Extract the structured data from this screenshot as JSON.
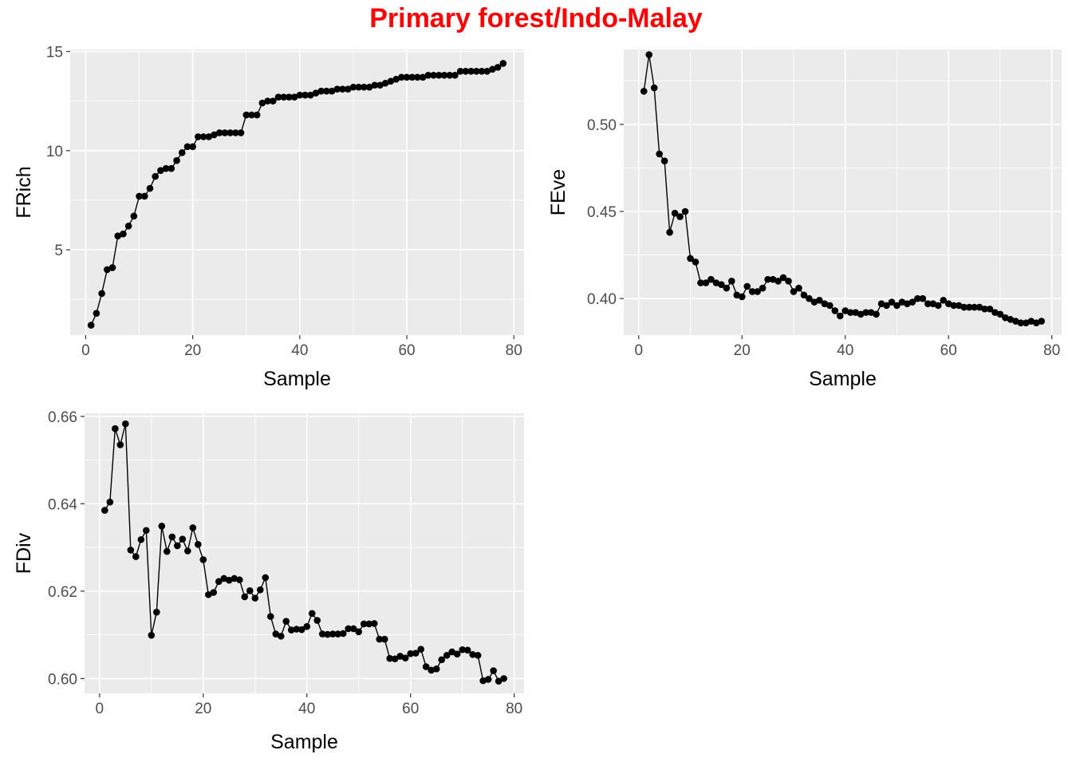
{
  "title": "Primary forest/Indo-Malay",
  "colors": {
    "title": "#ff0000",
    "panel_bg": "#ebebeb",
    "grid": "#ffffff",
    "line": "#000000",
    "tick_text": "#4d4d4d",
    "axis_title": "#000000"
  },
  "chart_data": [
    {
      "type": "line",
      "ylabel": "FRich",
      "xlabel": "Sample",
      "xlim": [
        -2.9,
        81.9
      ],
      "ylim": [
        0.7,
        15.1
      ],
      "x_ticks": [
        0,
        20,
        40,
        60,
        80
      ],
      "x_tick_labels": [
        "0",
        "20",
        "40",
        "60",
        "80"
      ],
      "y_ticks": [
        5,
        10,
        15
      ],
      "y_tick_labels": [
        "5",
        "10",
        "15"
      ],
      "grid": true,
      "series": [
        {
          "x": [
            1,
            2,
            3,
            4,
            5,
            6,
            7,
            8,
            9,
            10,
            11,
            12,
            13,
            14,
            15,
            16,
            17,
            18,
            19,
            20,
            21,
            22,
            23,
            24,
            25,
            26,
            27,
            28,
            29,
            30,
            31,
            32,
            33,
            34,
            35,
            36,
            37,
            38,
            39,
            40,
            41,
            42,
            43,
            44,
            45,
            46,
            47,
            48,
            49,
            50,
            51,
            52,
            53,
            54,
            55,
            56,
            57,
            58,
            59,
            60,
            61,
            62,
            63,
            64,
            65,
            66,
            67,
            68,
            69,
            70,
            71,
            72,
            73,
            74,
            75,
            76,
            77,
            78
          ],
          "values": [
            1.2,
            1.8,
            2.8,
            4.0,
            4.1,
            5.7,
            5.8,
            6.2,
            6.7,
            7.7,
            7.7,
            8.1,
            8.7,
            9.0,
            9.1,
            9.1,
            9.5,
            9.9,
            10.2,
            10.2,
            10.7,
            10.7,
            10.7,
            10.8,
            10.9,
            10.9,
            10.9,
            10.9,
            10.9,
            11.8,
            11.8,
            11.8,
            12.4,
            12.5,
            12.5,
            12.7,
            12.7,
            12.7,
            12.7,
            12.8,
            12.8,
            12.8,
            12.9,
            13.0,
            13.0,
            13.0,
            13.1,
            13.1,
            13.1,
            13.2,
            13.2,
            13.2,
            13.2,
            13.3,
            13.3,
            13.4,
            13.5,
            13.6,
            13.7,
            13.7,
            13.7,
            13.7,
            13.7,
            13.8,
            13.8,
            13.8,
            13.8,
            13.8,
            13.8,
            14.0,
            14.0,
            14.0,
            14.0,
            14.0,
            14.0,
            14.1,
            14.2,
            14.4
          ]
        }
      ]
    },
    {
      "type": "line",
      "ylabel": "FEve",
      "xlabel": "Sample",
      "xlim": [
        -2.9,
        81.9
      ],
      "ylim": [
        0.379,
        0.543
      ],
      "x_ticks": [
        0,
        20,
        40,
        60,
        80
      ],
      "x_tick_labels": [
        "0",
        "20",
        "40",
        "60",
        "80"
      ],
      "y_ticks": [
        0.4,
        0.45,
        0.5
      ],
      "y_tick_labels": [
        "0.40",
        "0.45",
        "0.50"
      ],
      "grid": true,
      "series": [
        {
          "x": [
            1,
            2,
            3,
            4,
            5,
            6,
            7,
            8,
            9,
            10,
            11,
            12,
            13,
            14,
            15,
            16,
            17,
            18,
            19,
            20,
            21,
            22,
            23,
            24,
            25,
            26,
            27,
            28,
            29,
            30,
            31,
            32,
            33,
            34,
            35,
            36,
            37,
            38,
            39,
            40,
            41,
            42,
            43,
            44,
            45,
            46,
            47,
            48,
            49,
            50,
            51,
            52,
            53,
            54,
            55,
            56,
            57,
            58,
            59,
            60,
            61,
            62,
            63,
            64,
            65,
            66,
            67,
            68,
            69,
            70,
            71,
            72,
            73,
            74,
            75,
            76,
            77,
            78
          ],
          "values": [
            0.519,
            0.54,
            0.521,
            0.483,
            0.479,
            0.438,
            0.449,
            0.447,
            0.45,
            0.423,
            0.421,
            0.409,
            0.409,
            0.411,
            0.409,
            0.408,
            0.406,
            0.41,
            0.402,
            0.401,
            0.407,
            0.404,
            0.404,
            0.406,
            0.411,
            0.411,
            0.41,
            0.412,
            0.41,
            0.404,
            0.406,
            0.402,
            0.4,
            0.398,
            0.399,
            0.397,
            0.396,
            0.393,
            0.39,
            0.393,
            0.392,
            0.392,
            0.391,
            0.392,
            0.392,
            0.391,
            0.397,
            0.396,
            0.398,
            0.396,
            0.398,
            0.397,
            0.398,
            0.4,
            0.4,
            0.397,
            0.397,
            0.396,
            0.399,
            0.397,
            0.396,
            0.396,
            0.395,
            0.395,
            0.395,
            0.395,
            0.394,
            0.394,
            0.392,
            0.391,
            0.389,
            0.388,
            0.387,
            0.386,
            0.386,
            0.387,
            0.386,
            0.387
          ]
        }
      ]
    },
    {
      "type": "line",
      "ylabel": "FDiv",
      "xlabel": "Sample",
      "xlim": [
        -2.9,
        81.9
      ],
      "ylim": [
        0.5966,
        0.6607
      ],
      "x_ticks": [
        0,
        20,
        40,
        60,
        80
      ],
      "x_tick_labels": [
        "0",
        "20",
        "40",
        "60",
        "80"
      ],
      "y_ticks": [
        0.6,
        0.62,
        0.64,
        0.66
      ],
      "y_tick_labels": [
        "0.60",
        "0.62",
        "0.64",
        "0.66"
      ],
      "grid": true,
      "series": [
        {
          "x": [
            1,
            2,
            3,
            4,
            5,
            6,
            7,
            8,
            9,
            10,
            11,
            12,
            13,
            14,
            15,
            16,
            17,
            18,
            19,
            20,
            21,
            22,
            23,
            24,
            25,
            26,
            27,
            28,
            29,
            30,
            31,
            32,
            33,
            34,
            35,
            36,
            37,
            38,
            39,
            40,
            41,
            42,
            43,
            44,
            45,
            46,
            47,
            48,
            49,
            50,
            51,
            52,
            53,
            54,
            55,
            56,
            57,
            58,
            59,
            60,
            61,
            62,
            63,
            64,
            65,
            66,
            67,
            68,
            69,
            70,
            71,
            72,
            73,
            74,
            75,
            76,
            77,
            78
          ],
          "values": [
            0.6385,
            0.6404,
            0.6572,
            0.6535,
            0.6583,
            0.6294,
            0.6279,
            0.6318,
            0.6339,
            0.6099,
            0.6152,
            0.6349,
            0.6291,
            0.6324,
            0.6304,
            0.6319,
            0.6292,
            0.6345,
            0.6307,
            0.6272,
            0.6192,
            0.6197,
            0.6222,
            0.6229,
            0.6225,
            0.6229,
            0.6226,
            0.6187,
            0.6201,
            0.6184,
            0.6203,
            0.6231,
            0.6142,
            0.6102,
            0.6097,
            0.6131,
            0.6111,
            0.6113,
            0.6112,
            0.6119,
            0.6149,
            0.6133,
            0.6102,
            0.6101,
            0.6102,
            0.6102,
            0.6103,
            0.6114,
            0.6114,
            0.6107,
            0.6125,
            0.6125,
            0.6126,
            0.609,
            0.609,
            0.6046,
            0.6045,
            0.6051,
            0.6047,
            0.6057,
            0.6058,
            0.6067,
            0.6027,
            0.6019,
            0.6022,
            0.6043,
            0.6053,
            0.6061,
            0.6056,
            0.6066,
            0.6065,
            0.6055,
            0.6053,
            0.5995,
            0.5998,
            0.6018,
            0.5994,
            0.6
          ]
        }
      ]
    }
  ]
}
